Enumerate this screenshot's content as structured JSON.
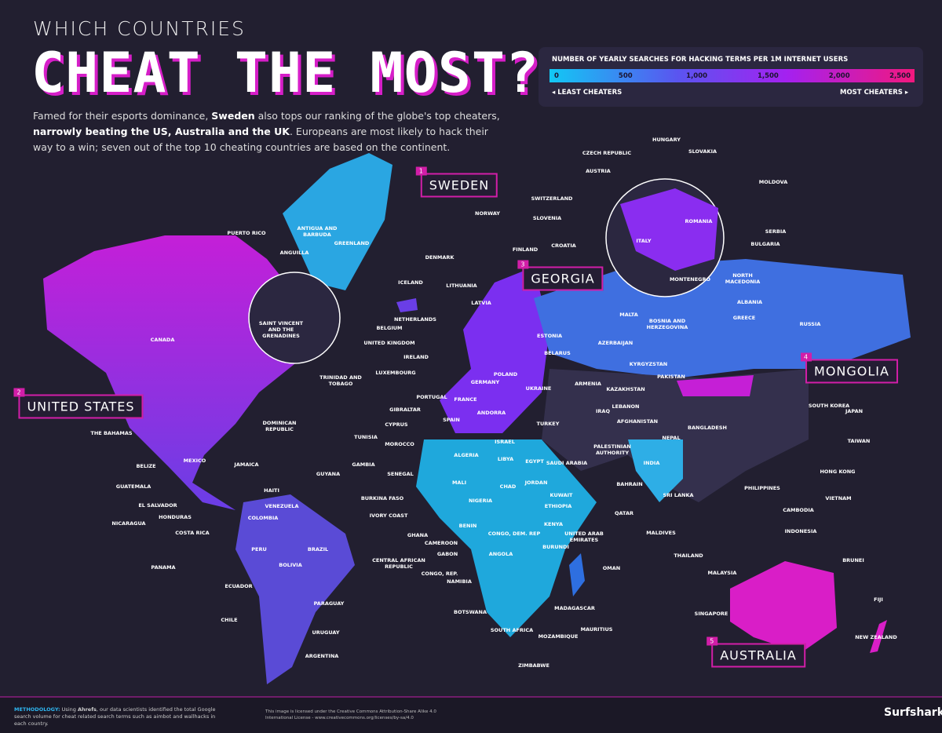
{
  "header": {
    "kicker": "WHICH COUNTRIES",
    "title": "CHEAT THE MOST?",
    "intro": [
      "Famed for their esports dominance, ",
      "Sweden",
      " also tops our ranking of the globe's top cheaters, ",
      "narrowly beating the US, Australia and the UK",
      ". Europeans are most likely to hack their way to a win; seven out of the top 10 cheating countries are based on the continent."
    ]
  },
  "legend": {
    "title": "NUMBER OF YEARLY SEARCHES FOR HACKING TERMS PER 1M INTERNET USERS",
    "range": [
      0,
      2500
    ],
    "ticks": [
      0,
      500,
      {
        "value": 1000,
        "label": "1,000"
      },
      {
        "value": 1500,
        "label": "1,500"
      },
      {
        "value": 2000,
        "label": "2,000"
      },
      {
        "value": 2500,
        "label": "2,500"
      }
    ],
    "low_label": "LEAST CHEATERS",
    "high_label": "MOST CHEATERS"
  },
  "ranking": [
    {
      "rank": "1",
      "country": "SWEDEN"
    },
    {
      "rank": "2",
      "country": "UNITED STATES"
    },
    {
      "rank": "3",
      "country": "GEORGIA"
    },
    {
      "rank": "4",
      "country": "MONGOLIA"
    },
    {
      "rank": "5",
      "country": "AUSTRALIA"
    }
  ],
  "labels": [
    "PUERTO RICO",
    "ANTIGUA AND BARBUDA",
    "ANGUILLA",
    "GREENLAND",
    "ICELAND",
    "DENMARK",
    "NORWAY",
    "FINLAND",
    "SWITZERLAND",
    "SLOVENIA",
    "CROATIA",
    "CZECH REPUBLIC",
    "AUSTRIA",
    "HUNGARY",
    "SLOVAKIA",
    "MOLDOVA",
    "SERBIA",
    "BULGARIA",
    "NORTH MACEDONIA",
    "ALBANIA",
    "GREECE",
    "MONTENEGRO",
    "ITALY",
    "ROMANIA",
    "MALTA",
    "BOSNIA AND HERZEGOVINA",
    "RUSSIA",
    "LITHUANIA",
    "LATVIA",
    "NETHERLANDS",
    "BELGIUM",
    "UNITED KINGDOM",
    "IRELAND",
    "LUXEMBOURG",
    "PORTUGAL",
    "GIBRALTAR",
    "CYPRUS",
    "TUNISIA",
    "MOROCCO",
    "ESTONIA",
    "BELARUS",
    "AZERBAIJAN",
    "KYRGYZSTAN",
    "PAKISTAN",
    "ARMENIA",
    "KAZAKHSTAN",
    "LEBANON",
    "IRAQ",
    "AFGHANISTAN",
    "ANDORRA",
    "ISRAEL",
    "PALESTINIAN AUTHORITY",
    "NEPAL",
    "BANGLADESH",
    "SOUTH KOREA",
    "JAPAN",
    "TAIWAN",
    "HONG KONG",
    "PHILIPPINES",
    "VIETNAM",
    "CAMBODIA",
    "INDONESIA",
    "BRUNEI",
    "THAILAND",
    "MALAYSIA",
    "SRI LANKA",
    "MALDIVES",
    "SINGAPORE",
    "FIJI",
    "NEW ZEALAND",
    "BAHRAIN",
    "QATAR",
    "KUWAIT",
    "UNITED ARAB EMIRATES",
    "OMAN",
    "JORDAN",
    "BURUNDI",
    "MADAGASCAR",
    "MAURITIUS",
    "MOZAMBIQUE",
    "ZIMBABWE",
    "SOUTH AFRICA",
    "BOTSWANA",
    "NAMIBIA",
    "CONGO, REP.",
    "CENTRAL AFRICAN REPUBLIC",
    "GABON",
    "CAMEROON",
    "GHANA",
    "BENIN",
    "IVORY COAST",
    "BURKINA FASO",
    "SENEGAL",
    "GAMBIA",
    "GUYANA",
    "HAITI",
    "JAMAICA",
    "DOMINICAN REPUBLIC",
    "THE BAHAMAS",
    "BELIZE",
    "GUATEMALA",
    "EL SALVADOR",
    "HONDURAS",
    "NICARAGUA",
    "COSTA RICA",
    "PANAMA",
    "ECUADOR",
    "CHILE",
    "ARGENTINA",
    "URUGUAY",
    "PARAGUAY",
    "SAINT VINCENT AND THE GRENADINES",
    "TRINIDAD AND TOBAGO",
    "CANADA",
    "MEXICO",
    "VENEZUELA",
    "COLOMBIA",
    "PERU",
    "BRAZIL",
    "BOLIVIA",
    "ALGERIA",
    "LIBYA",
    "EGYPT",
    "MALI",
    "CHAD",
    "NIGERIA",
    "ETHIOPIA",
    "KENYA",
    "CONGO, DEM. REP",
    "ANGOLA",
    "SAUDI ARABIA",
    "INDIA",
    "FRANCE",
    "SPAIN",
    "GERMANY",
    "POLAND",
    "UKRAINE",
    "TURKEY"
  ],
  "footer": {
    "methodology": [
      "METHODOLOGY:",
      " Using ",
      "Ahrefs",
      ", our data scientists identified the total Google search volume for cheat related search terms such as aimbot and wallhacks in each country."
    ],
    "license": "This image is licensed under the Creative Commons Attribution-Share Alike 4.0 International License - www.creativecommons.org/licenses/by-sa/4.0",
    "brand": "Surfshark"
  }
}
